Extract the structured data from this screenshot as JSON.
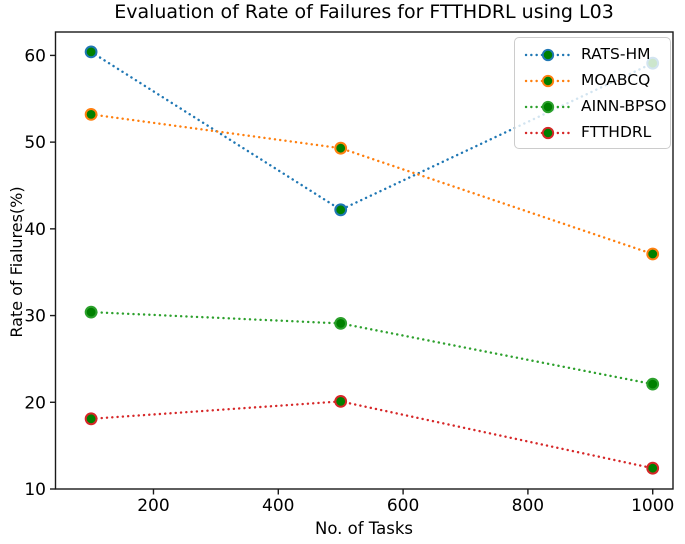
{
  "chart_data": {
    "type": "line",
    "line_style": "dotted",
    "title": "Evaluation of Rate of Failures for FTTHDRL using L03",
    "xlabel": "No. of Tasks",
    "ylabel": "Rate of Fialures(%)",
    "x": [
      100,
      500,
      1000
    ],
    "series": [
      {
        "name": "RATS-HM",
        "color": "#1f77b4",
        "values": [
          60.4,
          42.2,
          59.1
        ]
      },
      {
        "name": "MOABCQ",
        "color": "#ff7f0e",
        "values": [
          53.2,
          49.3,
          37.1
        ]
      },
      {
        "name": "AINN-BPSO",
        "color": "#2ca02c",
        "values": [
          30.4,
          29.1,
          22.1
        ]
      },
      {
        "name": "FTTHDRL",
        "color": "#d62728",
        "values": [
          18.1,
          20.1,
          12.4
        ]
      }
    ],
    "marker": {
      "shape": "circle",
      "face_color": "#008000"
    },
    "x_ticks": [
      200,
      400,
      600,
      800,
      1000
    ],
    "y_ticks": [
      10,
      20,
      30,
      40,
      50,
      60
    ],
    "xlim": [
      43,
      1032.5
    ],
    "ylim": [
      10,
      62.7
    ],
    "grid": false,
    "legend_position": "upper right",
    "spine_color": "#1a1a1a"
  }
}
